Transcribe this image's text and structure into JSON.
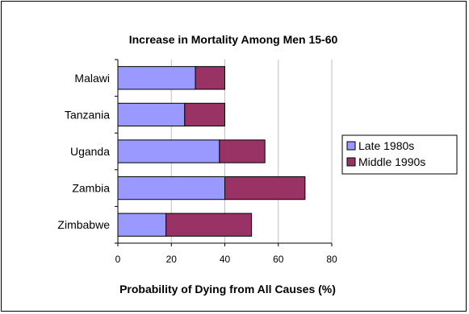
{
  "chart_data": {
    "type": "bar",
    "orientation": "horizontal",
    "stacked": true,
    "title": "Increase in Mortality Among Men 15-60",
    "xlabel": "Probability of Dying from All Causes (%)",
    "ylabel": "",
    "categories": [
      "Malawi",
      "Tanzania",
      "Uganda",
      "Zambia",
      "Zimbabwe"
    ],
    "series": [
      {
        "name": "Late 1980s",
        "values": [
          29,
          25,
          38,
          40,
          18
        ],
        "color": "#9999FF"
      },
      {
        "name": "Middle 1990s",
        "values": [
          11,
          15,
          17,
          30,
          32
        ],
        "color": "#993366"
      }
    ],
    "xlim": [
      0,
      80
    ],
    "xticks": [
      "0",
      "20",
      "40",
      "60",
      "80"
    ],
    "grid": "vertical",
    "legend": "right"
  }
}
